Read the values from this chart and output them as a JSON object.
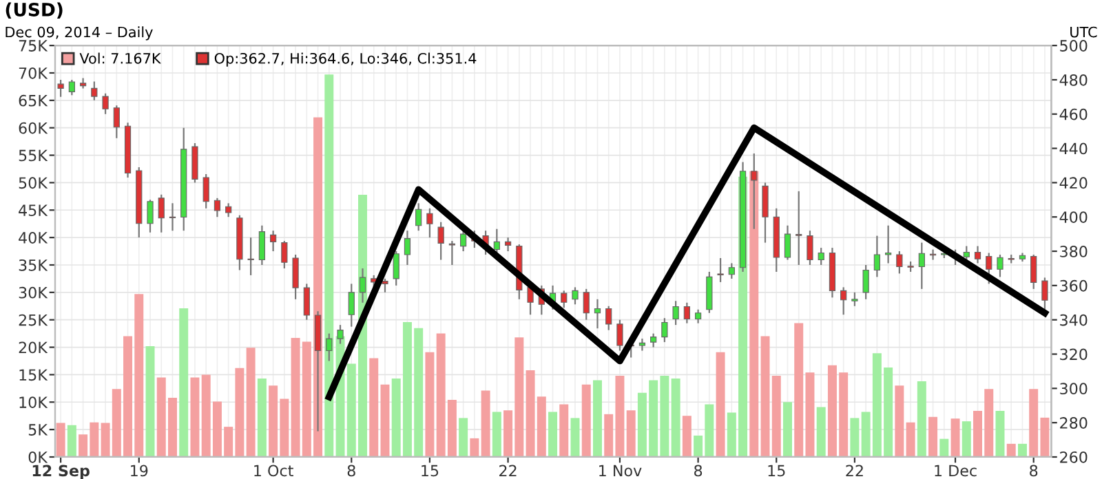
{
  "chart_data": {
    "type": "candlestick",
    "title": "(USD)",
    "subtitle": "Dec 09, 2014 – Daily",
    "annotations": [
      "UTC"
    ],
    "x": [
      "2014-09-12",
      "2014-09-13",
      "2014-09-14",
      "2014-09-15",
      "2014-09-16",
      "2014-09-17",
      "2014-09-18",
      "2014-09-19",
      "2014-09-20",
      "2014-09-21",
      "2014-09-22",
      "2014-09-23",
      "2014-09-24",
      "2014-09-25",
      "2014-09-26",
      "2014-09-27",
      "2014-09-28",
      "2014-09-29",
      "2014-09-30",
      "2014-10-01",
      "2014-10-02",
      "2014-10-03",
      "2014-10-04",
      "2014-10-05",
      "2014-10-06",
      "2014-10-07",
      "2014-10-08",
      "2014-10-09",
      "2014-10-10",
      "2014-10-11",
      "2014-10-12",
      "2014-10-13",
      "2014-10-14",
      "2014-10-15",
      "2014-10-16",
      "2014-10-17",
      "2014-10-18",
      "2014-10-19",
      "2014-10-20",
      "2014-10-21",
      "2014-10-22",
      "2014-10-23",
      "2014-10-24",
      "2014-10-25",
      "2014-10-26",
      "2014-10-27",
      "2014-10-28",
      "2014-10-29",
      "2014-10-30",
      "2014-10-31",
      "2014-11-01",
      "2014-11-02",
      "2014-11-03",
      "2014-11-04",
      "2014-11-05",
      "2014-11-06",
      "2014-11-07",
      "2014-11-08",
      "2014-11-09",
      "2014-11-10",
      "2014-11-11",
      "2014-11-12",
      "2014-11-13",
      "2014-11-14",
      "2014-11-15",
      "2014-11-16",
      "2014-11-17",
      "2014-11-18",
      "2014-11-19",
      "2014-11-20",
      "2014-11-21",
      "2014-11-22",
      "2014-11-23",
      "2014-11-24",
      "2014-11-25",
      "2014-11-26",
      "2014-11-27",
      "2014-11-28",
      "2014-11-29",
      "2014-11-30",
      "2014-12-01",
      "2014-12-02",
      "2014-12-03",
      "2014-12-04",
      "2014-12-05",
      "2014-12-06",
      "2014-12-07",
      "2014-12-08",
      "2014-12-09"
    ],
    "xlim": [
      "2014-09-11T12:00",
      "2014-12-09T14:00"
    ],
    "xticks": [
      {
        "value": "2014-09-12",
        "label": "12 Sep"
      },
      {
        "value": "2014-09-19",
        "label": "19"
      },
      {
        "value": "2014-10-01",
        "label": "1 Oct"
      },
      {
        "value": "2014-10-08",
        "label": "8"
      },
      {
        "value": "2014-10-15",
        "label": "15"
      },
      {
        "value": "2014-10-22",
        "label": "22"
      },
      {
        "value": "2014-11-01",
        "label": "1 Nov"
      },
      {
        "value": "2014-11-08",
        "label": "8"
      },
      {
        "value": "2014-11-15",
        "label": "15"
      },
      {
        "value": "2014-11-22",
        "label": "22"
      },
      {
        "value": "2014-12-01",
        "label": "1 Dec"
      },
      {
        "value": "2014-12-08",
        "label": "8"
      }
    ],
    "ylim": [
      0,
      75
    ],
    "yticks": [
      {
        "value": 0,
        "label": "0K"
      },
      {
        "value": 5,
        "label": "5K"
      },
      {
        "value": 10,
        "label": "10K"
      },
      {
        "value": 15,
        "label": "15K"
      },
      {
        "value": 20,
        "label": "20K"
      },
      {
        "value": 25,
        "label": "25K"
      },
      {
        "value": 30,
        "label": "30K"
      },
      {
        "value": 35,
        "label": "35K"
      },
      {
        "value": 40,
        "label": "40K"
      },
      {
        "value": 45,
        "label": "45K"
      },
      {
        "value": 50,
        "label": "50K"
      },
      {
        "value": 55,
        "label": "55K"
      },
      {
        "value": 60,
        "label": "60K"
      },
      {
        "value": 65,
        "label": "65K"
      },
      {
        "value": 70,
        "label": "70K"
      },
      {
        "value": 75,
        "label": "75K"
      }
    ],
    "y2lim": [
      260,
      500
    ],
    "y2ticks": [
      260,
      280,
      300,
      320,
      340,
      360,
      380,
      400,
      420,
      440,
      460,
      480,
      500
    ],
    "grid": true,
    "legend": "top left",
    "series": [
      {
        "type": "bar",
        "name": "Vol: 7.167K",
        "values": [
          6.2,
          5.8,
          4.1,
          6.3,
          6.2,
          12.4,
          22.0,
          29.7,
          20.2,
          14.5,
          10.8,
          27.1,
          14.5,
          15.0,
          10.1,
          5.5,
          16.2,
          19.9,
          14.3,
          13.0,
          10.6,
          21.7,
          21.0,
          61.9,
          69.7,
          22.0,
          17.0,
          47.8,
          18.0,
          13.2,
          14.3,
          24.6,
          23.5,
          19.1,
          22.5,
          10.4,
          7.1,
          3.4,
          12.1,
          8.2,
          8.5,
          21.8,
          15.8,
          11.0,
          8.2,
          9.6,
          7.1,
          13.2,
          14.0,
          7.8,
          14.8,
          8.5,
          11.7,
          14.0,
          14.8,
          14.3,
          7.5,
          3.9,
          9.6,
          19.1,
          8.1,
          51.1,
          52.1,
          22.0,
          14.8,
          10.0,
          24.4,
          15.4,
          9.1,
          16.7,
          15.4,
          7.1,
          8.2,
          18.9,
          16.3,
          13.0,
          6.3,
          13.8,
          7.3,
          3.3,
          7.0,
          6.5,
          8.4,
          12.4,
          8.4,
          2.4,
          2.4,
          12.4,
          7.167
        ],
        "colors": [
          "#f4a0a0",
          "#a0eea0",
          "#f4a0a0",
          "#f4a0a0",
          "#f4a0a0",
          "#f4a0a0",
          "#f4a0a0",
          "#f4a0a0",
          "#a0eea0",
          "#f4a0a0",
          "#f4a0a0",
          "#a0eea0",
          "#f4a0a0",
          "#f4a0a0",
          "#f4a0a0",
          "#f4a0a0",
          "#f4a0a0",
          "#f4a0a0",
          "#a0eea0",
          "#f4a0a0",
          "#f4a0a0",
          "#f4a0a0",
          "#f4a0a0",
          "#f4a0a0",
          "#a0eea0",
          "#a0eea0",
          "#a0eea0",
          "#a0eea0",
          "#f4a0a0",
          "#f4a0a0",
          "#a0eea0",
          "#a0eea0",
          "#a0eea0",
          "#f4a0a0",
          "#f4a0a0",
          "#f4a0a0",
          "#a0eea0",
          "#f4a0a0",
          "#f4a0a0",
          "#a0eea0",
          "#f4a0a0",
          "#f4a0a0",
          "#f4a0a0",
          "#f4a0a0",
          "#a0eea0",
          "#f4a0a0",
          "#a0eea0",
          "#f4a0a0",
          "#a0eea0",
          "#f4a0a0",
          "#f4a0a0",
          "#f4a0a0",
          "#a0eea0",
          "#a0eea0",
          "#a0eea0",
          "#a0eea0",
          "#f4a0a0",
          "#a0eea0",
          "#a0eea0",
          "#f4a0a0",
          "#a0eea0",
          "#a0eea0",
          "#f4a0a0",
          "#f4a0a0",
          "#f4a0a0",
          "#a0eea0",
          "#f4a0a0",
          "#f4a0a0",
          "#a0eea0",
          "#f4a0a0",
          "#f4a0a0",
          "#a0eea0",
          "#a0eea0",
          "#a0eea0",
          "#a0eea0",
          "#f4a0a0",
          "#f4a0a0",
          "#a0eea0",
          "#f4a0a0",
          "#a0eea0",
          "#f4a0a0",
          "#a0eea0",
          "#f4a0a0",
          "#f4a0a0",
          "#a0eea0",
          "#f4a0a0",
          "#a0eea0",
          "#f4a0a0",
          "#f4a0a0"
        ]
      },
      {
        "axis": "y2",
        "name": "Op:362.7, Hi:364.6, Lo:346, Cl:351.4",
        "ohlc": [
          [
            477.5,
            480,
            470,
            475
          ],
          [
            473,
            480,
            471,
            478.8
          ],
          [
            478,
            481,
            475,
            476.5
          ],
          [
            475,
            479,
            468,
            470.3
          ],
          [
            470.3,
            472,
            460,
            463
          ],
          [
            463.6,
            465,
            446,
            452.4
          ],
          [
            453,
            455,
            423,
            425.6
          ],
          [
            427,
            429,
            388,
            396.2
          ],
          [
            396.2,
            410,
            391,
            409
          ],
          [
            411,
            413,
            391,
            399.4
          ],
          [
            400,
            408,
            392,
            399.5
          ],
          [
            399.9,
            452,
            392,
            439.5
          ],
          [
            441,
            443,
            420,
            422
          ],
          [
            423,
            425,
            405,
            409
          ],
          [
            409.6,
            411,
            400,
            403.7
          ],
          [
            406,
            408,
            400,
            402.5
          ],
          [
            399.4,
            401,
            369,
            375.3
          ],
          [
            375.5,
            388,
            366,
            375
          ],
          [
            375,
            395,
            372,
            391.4
          ],
          [
            389.5,
            392,
            380,
            385.5
          ],
          [
            385,
            386,
            370,
            373.5
          ],
          [
            376,
            378,
            352,
            358.7
          ],
          [
            358.7,
            361,
            340,
            342.7
          ],
          [
            342.7,
            345,
            275,
            322
          ],
          [
            322,
            332,
            316,
            329
          ],
          [
            329,
            337,
            326,
            334
          ],
          [
            343,
            361,
            336,
            356
          ],
          [
            356,
            370,
            350,
            364.7
          ],
          [
            364,
            366,
            358,
            362
          ],
          [
            362.5,
            364,
            356,
            361
          ],
          [
            364,
            380,
            360,
            378.5
          ],
          [
            378,
            392,
            372,
            387.4
          ],
          [
            395,
            408,
            392,
            404.4
          ],
          [
            402,
            405,
            388,
            396
          ],
          [
            394,
            397,
            375,
            384.7
          ],
          [
            384,
            386,
            372,
            384
          ],
          [
            383,
            393,
            380,
            390
          ],
          [
            389,
            392,
            382,
            386
          ],
          [
            389,
            392,
            378,
            383.4
          ],
          [
            381,
            393,
            378,
            385.5
          ],
          [
            385.5,
            388,
            380,
            383.5
          ],
          [
            383,
            384,
            352,
            357.4
          ],
          [
            359,
            361,
            343,
            350.2
          ],
          [
            358,
            360,
            343,
            349
          ],
          [
            350,
            360,
            346,
            355.5
          ],
          [
            355.5,
            357,
            347,
            350.2
          ],
          [
            352,
            359,
            349,
            357
          ],
          [
            356,
            358,
            340,
            344
          ],
          [
            344,
            352,
            335,
            346.5
          ],
          [
            346.5,
            348,
            334,
            337.5
          ],
          [
            337.5,
            340,
            322,
            325
          ],
          [
            325,
            328,
            318,
            325
          ],
          [
            325,
            329,
            322,
            326.5
          ],
          [
            327,
            332,
            324,
            330
          ],
          [
            330,
            341,
            327,
            338.5
          ],
          [
            340.5,
            351,
            337,
            347.7
          ],
          [
            347.7,
            350,
            338,
            340.5
          ],
          [
            340.5,
            346,
            338,
            344
          ],
          [
            346,
            368,
            344,
            365
          ],
          [
            366.5,
            376,
            362,
            366.5
          ],
          [
            366.5,
            373,
            364,
            370.5
          ],
          [
            370.5,
            432,
            368,
            426.7
          ],
          [
            426.7,
            437,
            393,
            421.4
          ],
          [
            418,
            420,
            385,
            400
          ],
          [
            400,
            405,
            368,
            376.4
          ],
          [
            376.4,
            395,
            375,
            390
          ],
          [
            389.5,
            415,
            372,
            389.5
          ],
          [
            389,
            392,
            372,
            375
          ],
          [
            375,
            382,
            372,
            379
          ],
          [
            379,
            382,
            353,
            357
          ],
          [
            357,
            359,
            343,
            351.6
          ],
          [
            351,
            356,
            348,
            352
          ],
          [
            356,
            372,
            352,
            369
          ],
          [
            369,
            389,
            365,
            378
          ],
          [
            378,
            395,
            373,
            379
          ],
          [
            378,
            380,
            367,
            371
          ],
          [
            371,
            374,
            368,
            371
          ],
          [
            371,
            385,
            358,
            378.7
          ],
          [
            378,
            381,
            375,
            378
          ],
          [
            378,
            380,
            376,
            378.7
          ],
          [
            376.7,
            381,
            372,
            376.7
          ],
          [
            376.7,
            383,
            375,
            379.4
          ],
          [
            379.4,
            383,
            373,
            375.5
          ],
          [
            377,
            379,
            361,
            369.5
          ],
          [
            369.5,
            378,
            365,
            376.3
          ],
          [
            375.5,
            378,
            373,
            375.5
          ],
          [
            375.5,
            379,
            374,
            377.5
          ],
          [
            377,
            378,
            358,
            361.8
          ],
          [
            362.7,
            364.6,
            346,
            351.4
          ]
        ],
        "colors": [
          "#dd3333",
          "#44dd44",
          "#dd3333",
          "#dd3333",
          "#dd3333",
          "#dd3333",
          "#dd3333",
          "#dd3333",
          "#44dd44",
          "#dd3333",
          "#dd3333",
          "#44dd44",
          "#dd3333",
          "#dd3333",
          "#dd3333",
          "#dd3333",
          "#dd3333",
          "#dd3333",
          "#44dd44",
          "#dd3333",
          "#dd3333",
          "#dd3333",
          "#dd3333",
          "#dd3333",
          "#44dd44",
          "#44dd44",
          "#44dd44",
          "#44dd44",
          "#dd3333",
          "#dd3333",
          "#44dd44",
          "#44dd44",
          "#44dd44",
          "#dd3333",
          "#dd3333",
          "#dd3333",
          "#44dd44",
          "#dd3333",
          "#dd3333",
          "#44dd44",
          "#dd3333",
          "#dd3333",
          "#dd3333",
          "#dd3333",
          "#44dd44",
          "#dd3333",
          "#44dd44",
          "#dd3333",
          "#44dd44",
          "#dd3333",
          "#dd3333",
          "#dd3333",
          "#44dd44",
          "#44dd44",
          "#44dd44",
          "#44dd44",
          "#dd3333",
          "#44dd44",
          "#44dd44",
          "#dd3333",
          "#44dd44",
          "#44dd44",
          "#dd3333",
          "#dd3333",
          "#dd3333",
          "#44dd44",
          "#dd3333",
          "#dd3333",
          "#44dd44",
          "#dd3333",
          "#dd3333",
          "#44dd44",
          "#44dd44",
          "#44dd44",
          "#44dd44",
          "#dd3333",
          "#dd3333",
          "#44dd44",
          "#dd3333",
          "#44dd44",
          "#dd3333",
          "#44dd44",
          "#dd3333",
          "#dd3333",
          "#44dd44",
          "#dd3333",
          "#44dd44",
          "#dd3333",
          "#dd3333"
        ]
      },
      {
        "type": "line",
        "axis": "y2",
        "color": "#000000",
        "x": [
          "2014-10-06",
          "2014-10-14",
          "2014-11-01",
          "2014-11-13",
          "2014-12-09"
        ],
        "values": [
          295,
          416,
          316,
          452,
          344
        ]
      }
    ]
  }
}
